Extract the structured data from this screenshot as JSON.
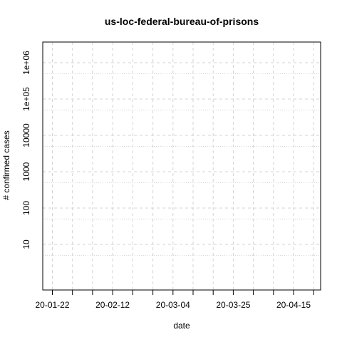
{
  "chart_data": {
    "type": "line",
    "title": "us-loc-federal-bureau-of-prisons",
    "xlabel": "date",
    "ylabel": "# confirmed cases",
    "y_scale": "log",
    "grid": true,
    "grid_style": "dashed major, dotted minor",
    "x_ticks": [
      "20-01-22",
      "20-02-12",
      "20-03-04",
      "20-03-25",
      "20-04-15"
    ],
    "y_ticks": [
      "10",
      "100",
      "1000",
      "10000",
      "1e+05",
      "1e+06"
    ],
    "x_range": [
      "20-01-22",
      "20-04-25"
    ],
    "series": []
  }
}
